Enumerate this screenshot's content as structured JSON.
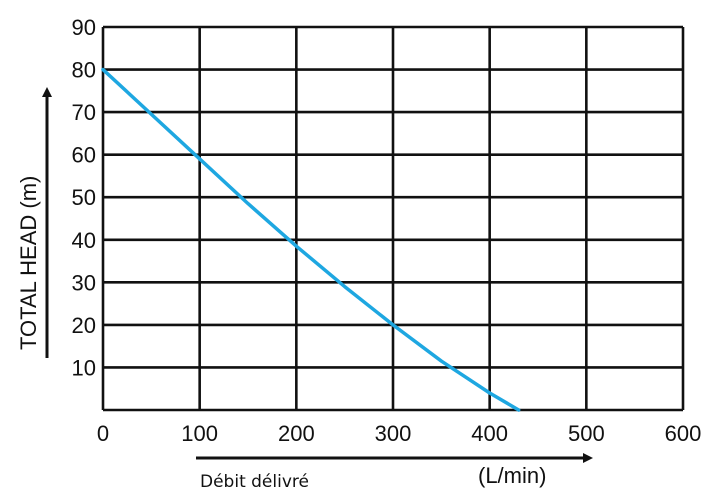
{
  "chart_data": {
    "type": "line",
    "ylabel": "TOTAL  HEAD (m)",
    "xlabel": "Débit délivré",
    "xunit": "(L/min)",
    "xlim": [
      0,
      600
    ],
    "ylim": [
      0,
      90
    ],
    "x_ticks": [
      "0",
      "100",
      "200",
      "300",
      "400",
      "500",
      "600"
    ],
    "y_ticks": [
      "10",
      "20",
      "30",
      "40",
      "50",
      "60",
      "70",
      "80",
      "90"
    ],
    "grid": true,
    "series": [
      {
        "color": "#1ea7e1",
        "x": [
          0,
          50,
          100,
          150,
          200,
          250,
          300,
          350,
          400,
          430
        ],
        "y": [
          80,
          69.5,
          59,
          48.5,
          38.5,
          29,
          20,
          11.5,
          4,
          0
        ]
      }
    ]
  }
}
